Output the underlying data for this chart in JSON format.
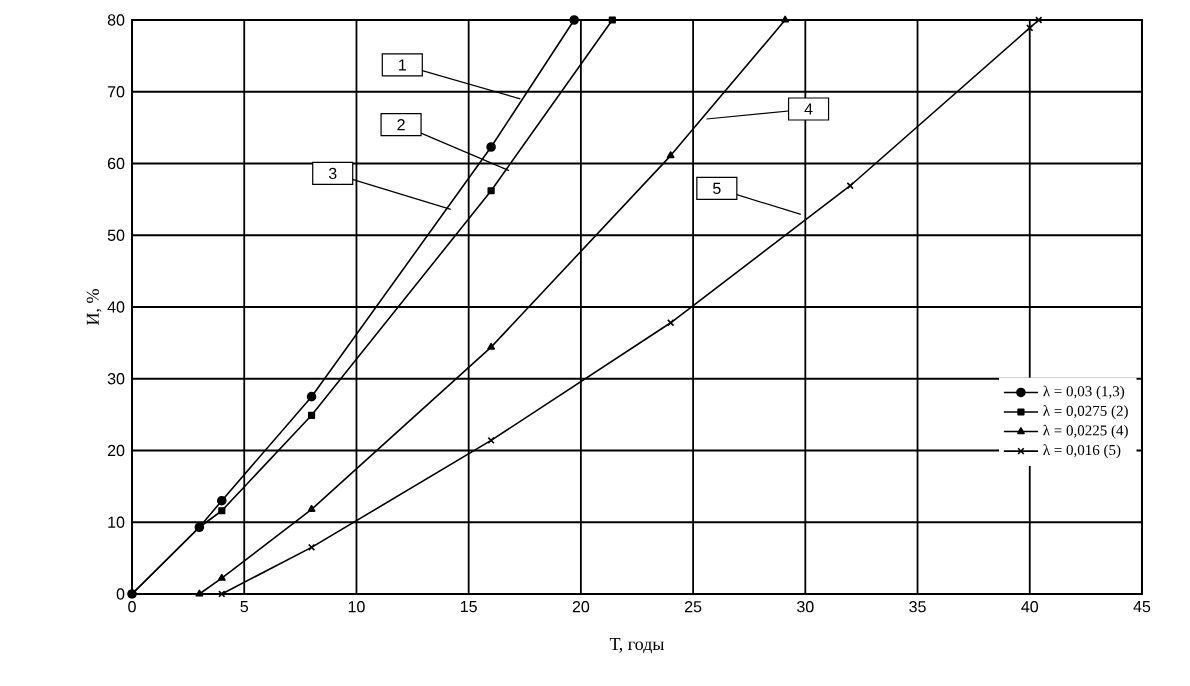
{
  "chart_data": {
    "type": "line",
    "xlabel": "Т, годы",
    "ylabel": "И, %",
    "xlim": [
      0,
      45
    ],
    "ylim": [
      0,
      80
    ],
    "xticks": [
      0,
      5,
      10,
      15,
      20,
      25,
      30,
      35,
      40,
      45
    ],
    "yticks": [
      0,
      10,
      20,
      30,
      40,
      50,
      60,
      70,
      80
    ],
    "grid": true,
    "legend": "right",
    "line_style": "solid",
    "series": [
      {
        "name": "λ = 0,03 (1,3)",
        "color": "#000000",
        "marker": "circle",
        "x": [
          0,
          3,
          4,
          8,
          16,
          19.7
        ],
        "values": [
          0,
          9.3,
          13,
          27.5,
          62.3,
          80
        ]
      },
      {
        "name": "λ = 0,0275 (2)",
        "color": "#000000",
        "marker": "square",
        "x": [
          0,
          3,
          4,
          8,
          16,
          21.4
        ],
        "values": [
          0,
          9.3,
          11.6,
          24.9,
          56.2,
          80
        ]
      },
      {
        "name": "λ = 0,0225 (4)",
        "color": "#000000",
        "marker": "triangle",
        "x": [
          3,
          4,
          8,
          16,
          24,
          29.1
        ],
        "values": [
          0,
          2.2,
          11.8,
          34.4,
          61.1,
          80
        ]
      },
      {
        "name": "λ = 0,016 (5)",
        "color": "#000000",
        "marker": "cross",
        "x": [
          4,
          8,
          16,
          24,
          32,
          40,
          40.4
        ],
        "values": [
          0,
          6.5,
          21.4,
          37.8,
          56.9,
          78.9,
          80
        ]
      }
    ],
    "annotations": [
      {
        "text": "1",
        "x": 17.3,
        "y": 69
      },
      {
        "text": "2",
        "x": 16.8,
        "y": 59
      },
      {
        "text": "3",
        "x": 14.2,
        "y": 53.6
      },
      {
        "text": "4",
        "x": 25.6,
        "y": 66.2
      },
      {
        "text": "5",
        "x": 29.8,
        "y": 52.9
      }
    ]
  }
}
